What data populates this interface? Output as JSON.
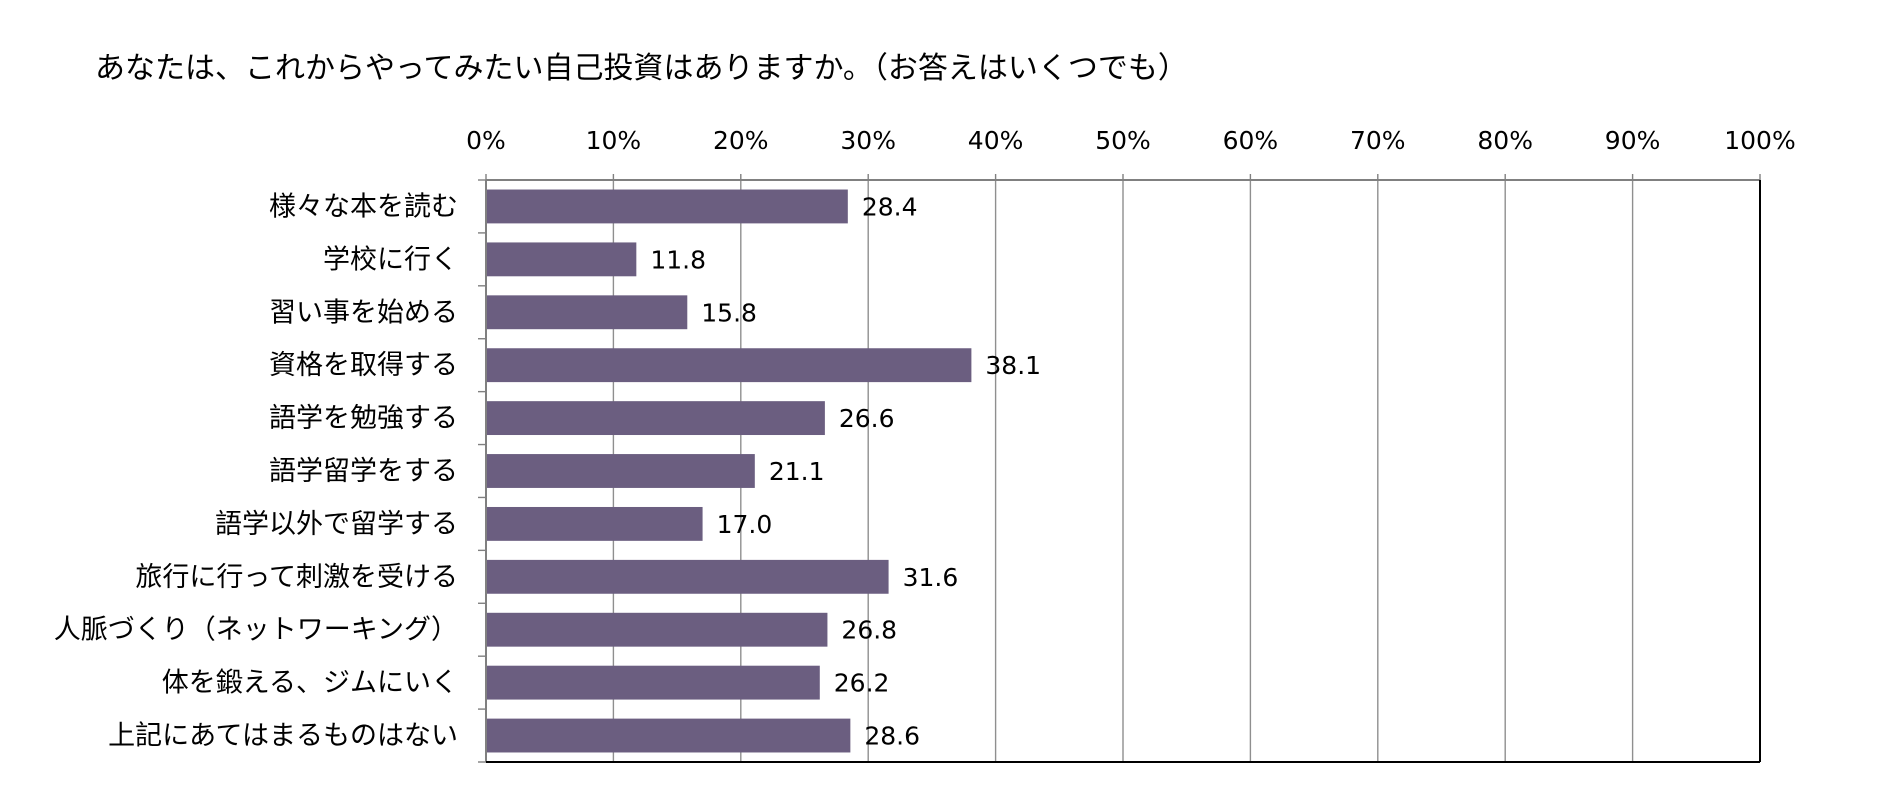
{
  "chart_data": {
    "type": "bar",
    "orientation": "horizontal",
    "title": "あなたは、これからやってみたい自己投資はありますか。（お答えはいくつでも）",
    "xlabel": "",
    "ylabel": "",
    "xlim": [
      0,
      100
    ],
    "x_ticks": [
      "0%",
      "10%",
      "20%",
      "30%",
      "40%",
      "50%",
      "60%",
      "70%",
      "80%",
      "90%",
      "100%"
    ],
    "grid": true,
    "axis_position": "top",
    "bar_color": "#6b5e80",
    "categories": [
      "様々な本を読む",
      "学校に行く",
      "習い事を始める",
      "資格を取得する",
      "語学を勉強する",
      "語学留学をする",
      "語学以外で留学する",
      "旅行に行って刺激を受ける",
      "人脈づくり（ネットワーキング）",
      "体を鍛える、ジムにいく",
      "上記にあてはまるものはない"
    ],
    "values": [
      28.4,
      11.8,
      15.8,
      38.1,
      26.6,
      21.1,
      17.0,
      31.6,
      26.8,
      26.2,
      28.6
    ],
    "value_labels": [
      "28.4",
      "11.8",
      "15.8",
      "38.1",
      "26.6",
      "21.1",
      "17.0",
      "31.6",
      "26.8",
      "26.2",
      "28.6"
    ]
  }
}
